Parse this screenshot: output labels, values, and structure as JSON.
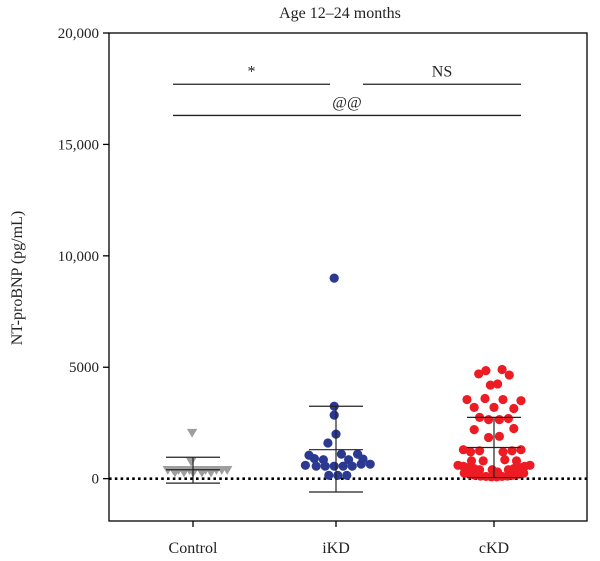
{
  "chart_data": {
    "type": "scatter",
    "title": "Age 12–24 months",
    "ylabel": "NT-proBNP (pg/mL)",
    "xlabel": "",
    "ylim": [
      -1900,
      20000
    ],
    "yticks": [
      0,
      5000,
      10000,
      15000,
      20000
    ],
    "ytick_labels": [
      "0",
      "5000",
      "10,000",
      "15,000",
      "20,000"
    ],
    "categories": [
      "Control",
      "iKD",
      "cKD"
    ],
    "reference_line": {
      "y": 0,
      "style": "dotted"
    },
    "series": [
      {
        "category": "Control",
        "marker": "triangle-down",
        "color": "#9e9e9e",
        "points": [
          [
            -0.28,
            380
          ],
          [
            -0.22,
            380
          ],
          [
            -0.16,
            380
          ],
          [
            -0.1,
            380
          ],
          [
            -0.04,
            380
          ],
          [
            0.02,
            380
          ],
          [
            0.08,
            380
          ],
          [
            0.14,
            380
          ],
          [
            0.2,
            380
          ],
          [
            0.26,
            380
          ],
          [
            0.32,
            380
          ],
          [
            0.38,
            380
          ],
          [
            -0.2,
            270
          ],
          [
            -0.1,
            270
          ],
          [
            0.0,
            270
          ],
          [
            0.1,
            270
          ],
          [
            0.2,
            270
          ],
          [
            -0.02,
            750
          ],
          [
            -0.01,
            2050
          ]
        ],
        "mean": 400,
        "sd_low": -200,
        "sd_high": 960
      },
      {
        "category": "iKD",
        "marker": "circle",
        "color": "#2b3990",
        "points": [
          [
            -0.02,
            9000
          ],
          [
            -0.02,
            3250
          ],
          [
            -0.02,
            2850
          ],
          [
            0.0,
            2000
          ],
          [
            -0.09,
            1600
          ],
          [
            -0.3,
            1050
          ],
          [
            0.06,
            1100
          ],
          [
            0.24,
            1100
          ],
          [
            -0.24,
            900
          ],
          [
            -0.14,
            850
          ],
          [
            0.14,
            850
          ],
          [
            0.3,
            880
          ],
          [
            -0.34,
            600
          ],
          [
            -0.22,
            560
          ],
          [
            -0.12,
            560
          ],
          [
            -0.02,
            560
          ],
          [
            0.08,
            560
          ],
          [
            0.18,
            560
          ],
          [
            0.28,
            650
          ],
          [
            0.38,
            650
          ],
          [
            -0.08,
            150
          ],
          [
            0.02,
            150
          ],
          [
            0.12,
            150
          ]
        ],
        "mean": 1300,
        "sd_low": -600,
        "sd_high": 3250
      },
      {
        "category": "cKD",
        "marker": "circle",
        "color": "#ed1c24",
        "points": [
          [
            -0.09,
            4850
          ],
          [
            0.09,
            4900
          ],
          [
            -0.17,
            4700
          ],
          [
            0.17,
            4650
          ],
          [
            -0.04,
            4200
          ],
          [
            0.04,
            4250
          ],
          [
            -0.3,
            3550
          ],
          [
            -0.1,
            3600
          ],
          [
            0.1,
            3550
          ],
          [
            0.3,
            3500
          ],
          [
            -0.22,
            3200
          ],
          [
            0.0,
            3200
          ],
          [
            0.22,
            3150
          ],
          [
            -0.16,
            2750
          ],
          [
            -0.06,
            2650
          ],
          [
            0.06,
            2650
          ],
          [
            0.16,
            2700
          ],
          [
            -0.22,
            2200
          ],
          [
            -0.06,
            1850
          ],
          [
            0.06,
            1900
          ],
          [
            0.22,
            2250
          ],
          [
            -0.34,
            1300
          ],
          [
            -0.26,
            1200
          ],
          [
            -0.16,
            1250
          ],
          [
            0.1,
            1200
          ],
          [
            0.2,
            1250
          ],
          [
            0.3,
            1300
          ],
          [
            -0.25,
            800
          ],
          [
            -0.12,
            800
          ],
          [
            0.12,
            850
          ],
          [
            0.25,
            800
          ],
          [
            -0.4,
            600
          ],
          [
            -0.34,
            550
          ],
          [
            -0.28,
            500
          ],
          [
            -0.22,
            450
          ],
          [
            -0.16,
            400
          ],
          [
            0.16,
            400
          ],
          [
            0.22,
            450
          ],
          [
            0.28,
            500
          ],
          [
            0.34,
            550
          ],
          [
            0.4,
            600
          ],
          [
            -0.33,
            250
          ],
          [
            -0.27,
            200
          ],
          [
            -0.21,
            150
          ],
          [
            -0.15,
            120
          ],
          [
            -0.09,
            100
          ],
          [
            -0.03,
            80
          ],
          [
            0.03,
            80
          ],
          [
            0.09,
            100
          ],
          [
            0.15,
            120
          ],
          [
            0.21,
            150
          ],
          [
            0.27,
            200
          ],
          [
            0.33,
            250
          ],
          [
            -0.02,
            400
          ],
          [
            0.04,
            300
          ]
        ],
        "mean": 1400,
        "sd_low": 50,
        "sd_high": 2750
      }
    ],
    "annotations": [
      {
        "text": "*",
        "from": "Control",
        "to": "iKD",
        "y": 17700,
        "type": "bracket"
      },
      {
        "text": "NS",
        "from": "iKD",
        "to": "cKD",
        "y": 17700,
        "type": "bracket"
      },
      {
        "text": "@@",
        "from": "Control",
        "to": "cKD",
        "y": 16300,
        "type": "bracket"
      }
    ]
  }
}
